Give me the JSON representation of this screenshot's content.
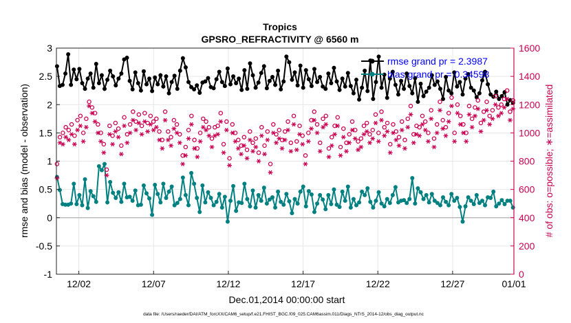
{
  "chart_data": {
    "type": "line",
    "title": "Tropics",
    "subtitle": "GPSRO_REFRACTIVITY @ 6560 m",
    "xlabel": "Dec.01,2014 00:00:00 start",
    "ylabel": "rmse and bias (model - observation)",
    "y2label": "# of obs: o=possible; ∗=assimilated",
    "footer": "data file: /Users/raeder/DAI/ATM_forcXX/CAM6_setup/f.e21.FHIST_BGC.f09_025.CAM6assim.011/Diags_NTrS_2014-12/obs_diag_output.nc",
    "x_range": [
      0.5,
      31.1
    ],
    "x_ticks": [
      {
        "value": 2,
        "label": "12/02"
      },
      {
        "value": 7,
        "label": "12/07"
      },
      {
        "value": 12,
        "label": "12/12"
      },
      {
        "value": 17,
        "label": "12/17"
      },
      {
        "value": 22,
        "label": "12/22"
      },
      {
        "value": 27,
        "label": "12/27"
      },
      {
        "value": 32,
        "label": "01/01"
      }
    ],
    "ylim": [
      -1,
      3
    ],
    "y_ticks": [
      "-1",
      "-0.5",
      "0",
      "0.5",
      "1",
      "1.5",
      "2",
      "2.5",
      "3"
    ],
    "y2lim": [
      0,
      1600
    ],
    "y2_ticks": [
      "0",
      "200",
      "400",
      "600",
      "800",
      "1000",
      "1200",
      "1400",
      "1600"
    ],
    "grid": true,
    "legend_position": "top-right",
    "colors": {
      "rmse": "#000000",
      "bias": "#008080",
      "counts": "#cc0052",
      "legend_text": "#0000ff",
      "zero_line": "#bbbbbb"
    },
    "series": [
      {
        "name": "rmse grand pr = 2.3987",
        "axis": "left",
        "values": [
          2.68,
          2.33,
          2.35,
          2.55,
          2.89,
          2.35,
          2.62,
          2.45,
          2.63,
          2.38,
          2.28,
          2.46,
          2.55,
          2.3,
          2.72,
          2.38,
          2.52,
          2.28,
          2.44,
          2.6,
          2.5,
          2.34,
          2.46,
          2.55,
          2.8,
          2.83,
          2.42,
          2.27,
          2.57,
          2.38,
          2.25,
          2.59,
          2.36,
          2.46,
          2.24,
          2.48,
          2.36,
          2.52,
          2.32,
          2.5,
          2.2,
          2.4,
          2.51,
          2.28,
          2.6,
          2.82,
          2.66,
          2.4,
          2.31,
          2.27,
          2.34,
          2.21,
          2.39,
          2.41,
          2.47,
          2.31,
          2.29,
          2.45,
          2.58,
          2.4,
          2.33,
          2.64,
          2.36,
          2.5,
          2.38,
          2.46,
          2.26,
          2.61,
          2.28,
          2.73,
          2.52,
          2.3,
          2.39,
          2.56,
          2.68,
          2.29,
          2.42,
          2.49,
          2.35,
          2.6,
          2.27,
          2.41,
          2.85,
          2.75,
          2.44,
          2.57,
          2.34,
          2.69,
          2.3,
          2.61,
          2.45,
          2.33,
          2.63,
          2.4,
          2.49,
          2.32,
          2.28,
          2.55,
          2.38,
          2.65,
          2.41,
          2.26,
          2.46,
          2.32,
          2.56,
          2.33,
          2.2,
          2.44,
          2.09,
          2.3,
          2.6,
          2.24,
          2.78,
          2.1,
          2.4,
          2.85,
          2.3,
          2.53,
          2.12,
          2.46,
          2.58,
          2.35,
          2.18,
          2.42,
          2.28,
          2.55,
          2.33,
          2.2,
          2.47,
          2.05,
          2.37,
          2.15,
          2.23,
          2.3,
          2.52,
          2.35,
          2.41,
          2.28,
          2.1,
          2.49,
          2.25,
          2.2,
          2.57,
          2.32,
          2.4,
          2.18,
          2.46,
          2.54,
          2.3,
          2.25,
          2.13,
          2.2,
          2.43,
          2.58,
          2.36,
          2.18,
          2.14,
          2.23,
          2.1,
          2.15,
          2.22,
          2.0,
          2.08,
          2.03
        ]
      },
      {
        "name": "bias grand pr = 0.34598",
        "axis": "left",
        "values": [
          0.72,
          0.49,
          0.24,
          0.23,
          0.23,
          0.25,
          0.6,
          0.24,
          0.4,
          0.22,
          0.68,
          0.17,
          0.47,
          0.38,
          0.28,
          0.91,
          0.84,
          0.95,
          0.27,
          0.63,
          0.44,
          0.35,
          0.45,
          0.28,
          0.6,
          0.36,
          0.37,
          0.3,
          0.48,
          0.22,
          0.23,
          0.57,
          0.43,
          0.34,
          0.05,
          0.58,
          0.42,
          0.27,
          0.6,
          0.35,
          0.46,
          0.55,
          0.22,
          0.26,
          0.33,
          0.71,
          0.4,
          0.22,
          0.79,
          0.6,
          0.35,
          0.1,
          0.57,
          0.27,
          0.45,
          0.35,
          0.22,
          0.28,
          0.42,
          0.18,
          0.37,
          -0.07,
          0.3,
          0.56,
          0.12,
          0.27,
          0.26,
          0.6,
          0.33,
          0.2,
          0.48,
          0.18,
          0.4,
          0.3,
          0.53,
          0.25,
          0.32,
          0.36,
          0.18,
          0.46,
          0.28,
          0.23,
          0.42,
          0.29,
          0.08,
          0.33,
          0.25,
          0.46,
          0.55,
          0.2,
          0.47,
          0.41,
          0.1,
          0.25,
          0.4,
          0.32,
          0.15,
          0.4,
          0.24,
          0.5,
          0.23,
          0.19,
          0.46,
          0.3,
          0.55,
          0.18,
          0.33,
          0.22,
          0.27,
          0.46,
          0.4,
          0.52,
          0.28,
          0.18,
          0.3,
          0.45,
          0.25,
          0.2,
          0.33,
          0.26,
          0.4,
          0.54,
          0.27,
          0.3,
          0.31,
          0.26,
          0.33,
          0.7,
          0.25,
          0.52,
          0.45,
          0.33,
          0.4,
          0.27,
          0.42,
          0.3,
          0.26,
          0.22,
          0.36,
          0.28,
          0.22,
          0.42,
          0.3,
          0.35,
          0.19,
          -0.07,
          0.2,
          0.36,
          0.3,
          0.24,
          0.4,
          0.26,
          0.3,
          0.22,
          0.36,
          0.35,
          0.46,
          0.2,
          0.25,
          0.31,
          0.24,
          0.3,
          0.3,
          0.18
        ]
      }
    ],
    "counts_possible": {
      "name": "possible",
      "axis": "right",
      "marker": "o",
      "values": [
        780,
        970,
        1000,
        1040,
        1020,
        1060,
        980,
        1090,
        1120,
        1000,
        1100,
        1220,
        1180,
        1140,
        1060,
        1000,
        920,
        740,
        1050,
        980,
        1070,
        1030,
        910,
        1110,
        990,
        1060,
        1150,
        1080,
        1130,
        1050,
        1140,
        1070,
        1120,
        1080,
        1100,
        1010,
        950,
        1150,
        1010,
        970,
        1090,
        1060,
        990,
        840,
        900,
        1020,
        1120,
        950,
        890,
        1000,
        1100,
        1080,
        1040,
        960,
        1040,
        1050,
        1140,
        920,
        1080,
        820,
        1060,
        1000,
        950,
        910,
        970,
        880,
        1010,
        930,
        960,
        860,
        1040,
        910,
        1010,
        780,
        1060,
        990,
        1020,
        950,
        1010,
        1080,
        930,
        1120,
        940,
        1050,
        980,
        840,
        1000,
        1090,
        1150,
        1060,
        930,
        1100,
        1120,
        890,
        970,
        1050,
        1110,
        900,
        1030,
        930,
        990,
        1080,
        1020,
        940,
        960,
        1050,
        1070,
        990,
        1020,
        1130,
        1000,
        1150,
        1040,
        1070,
        920,
        1060,
        1010,
        970,
        1080,
        950,
        1100,
        1190,
        990,
        1050,
        1040,
        1120,
        1080,
        1000,
        1160,
        960,
        1060,
        1220,
        1090,
        1040,
        1140,
        1250,
        1000,
        1200,
        1120,
        1060,
        1000,
        1190,
        1100,
        1180,
        1230,
        1070,
        1150,
        1220,
        1120,
        1160,
        1260,
        1180,
        1200,
        1240,
        1300,
        1150,
        1230
      ]
    },
    "counts_assimilated": {
      "name": "assimilated",
      "axis": "right",
      "marker": "*",
      "values": [
        680,
        930,
        920,
        970,
        950,
        990,
        920,
        1020,
        1050,
        940,
        1040,
        1190,
        1140,
        1080,
        1000,
        940,
        860,
        700,
        990,
        920,
        1010,
        970,
        850,
        1050,
        930,
        1000,
        1090,
        1020,
        1070,
        990,
        1080,
        1010,
        1060,
        1020,
        1040,
        950,
        890,
        1090,
        950,
        910,
        1030,
        1000,
        930,
        780,
        840,
        960,
        1060,
        890,
        830,
        940,
        1040,
        1020,
        980,
        900,
        980,
        990,
        1080,
        860,
        1020,
        770,
        1000,
        940,
        890,
        850,
        910,
        820,
        950,
        870,
        900,
        800,
        980,
        850,
        950,
        720,
        1000,
        930,
        960,
        890,
        950,
        1020,
        870,
        1060,
        880,
        990,
        920,
        780,
        940,
        1030,
        1090,
        1000,
        870,
        1040,
        1060,
        830,
        910,
        990,
        1050,
        840,
        970,
        870,
        930,
        1020,
        960,
        880,
        900,
        990,
        1010,
        930,
        960,
        1070,
        940,
        1090,
        980,
        1010,
        860,
        1000,
        950,
        910,
        1020,
        890,
        1040,
        1130,
        930,
        990,
        980,
        1060,
        1020,
        940,
        1100,
        900,
        1000,
        1160,
        1030,
        980,
        1080,
        1190,
        940,
        1140,
        1060,
        1000,
        940,
        1130,
        1040,
        1120,
        1170,
        1010,
        1090,
        1160,
        1060,
        1100,
        1200,
        1120,
        1140,
        1180,
        1240,
        1090,
        1170
      ]
    }
  }
}
